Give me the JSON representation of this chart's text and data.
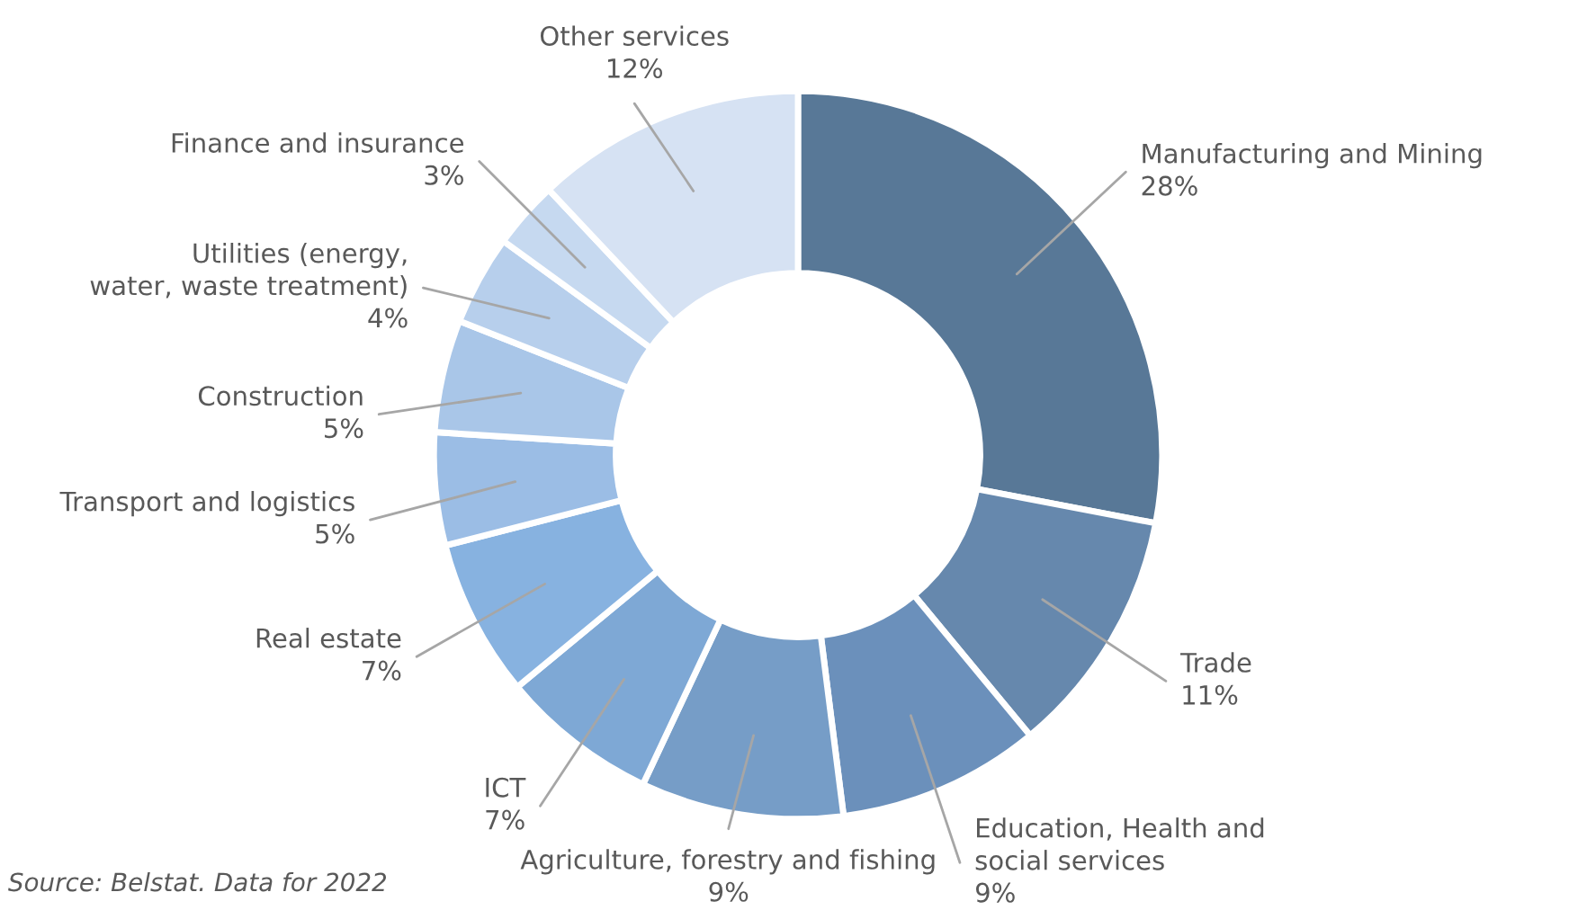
{
  "chart_data": {
    "type": "donut",
    "categories": [
      "Manufacturing and Mining",
      "Trade",
      "Education, Health and social services",
      "Agriculture, forestry and fishing",
      "ICT",
      "Real estate",
      "Transport and logistics",
      "Construction",
      "Utilities (energy, water, waste treatment)",
      "Finance and insurance",
      "Other services"
    ],
    "values": [
      28,
      11,
      9,
      9,
      7,
      7,
      5,
      5,
      4,
      3,
      12
    ],
    "value_labels": [
      "28%",
      "11%",
      "9%",
      "9%",
      "7%",
      "7%",
      "5%",
      "5%",
      "4%",
      "3%",
      "12%"
    ],
    "colors": [
      "#587897",
      "#6688ad",
      "#6b90bb",
      "#769dc7",
      "#7ea8d5",
      "#87b2e0",
      "#9bbde5",
      "#a9c6e8",
      "#b7cfec",
      "#c6d9f0",
      "#d6e2f3"
    ],
    "legend": false,
    "annotations": [
      "Source: Belstat. Data for 2022"
    ]
  }
}
